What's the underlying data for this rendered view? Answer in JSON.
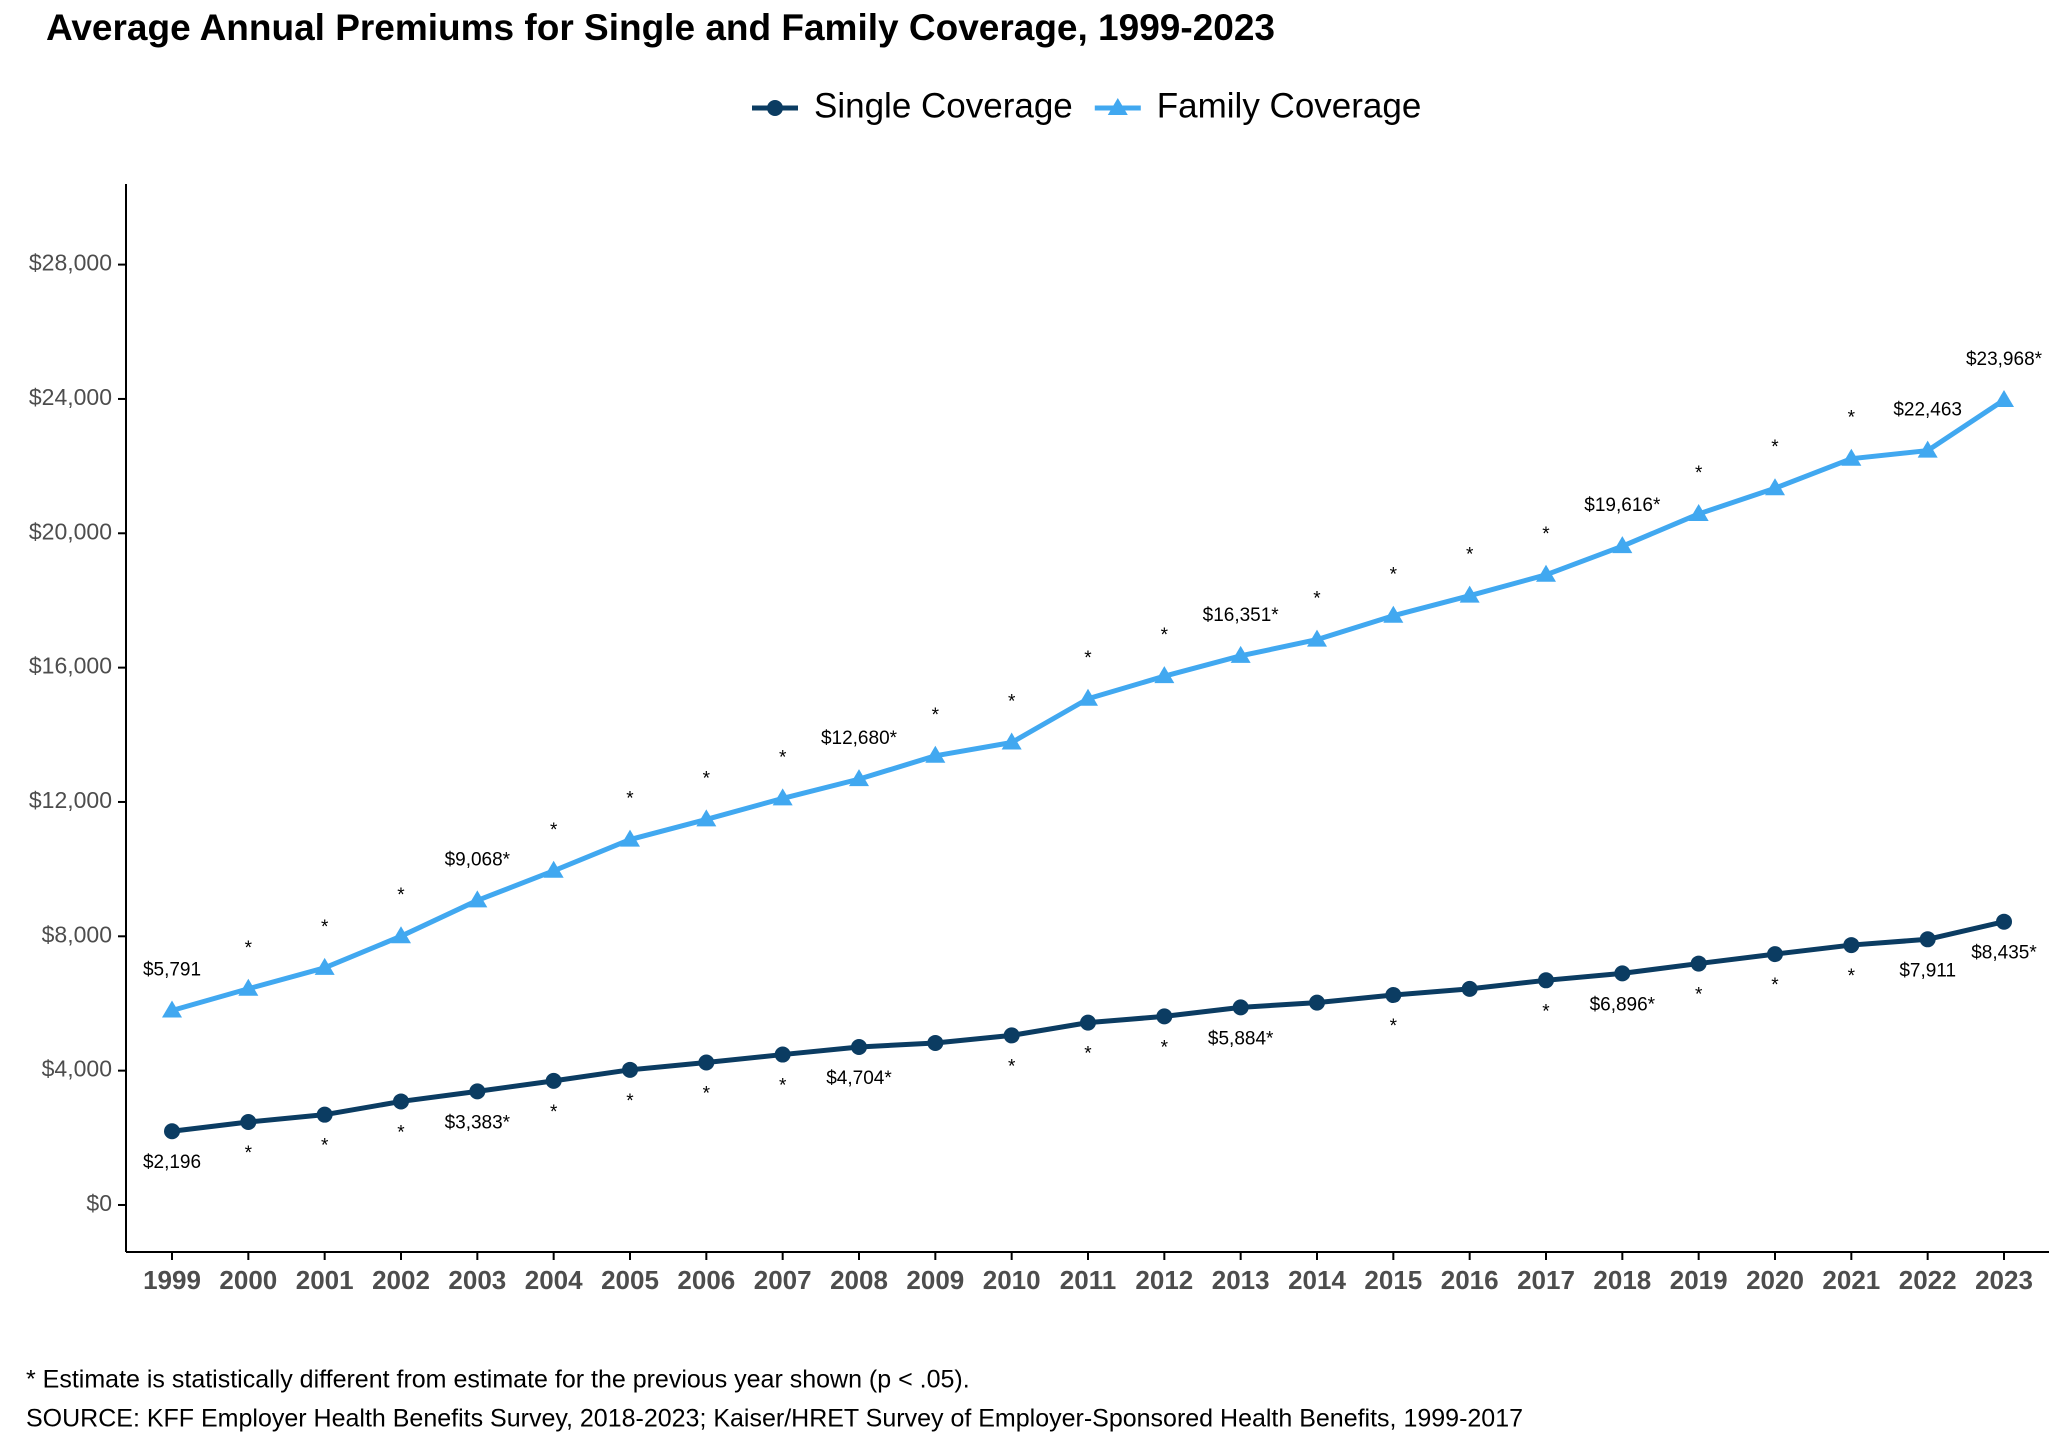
{
  "chart_data": {
    "type": "line",
    "title": "Average Annual Premiums for Single and Family Coverage, 1999-2023",
    "categories": [
      "1999",
      "2000",
      "2001",
      "2002",
      "2003",
      "2004",
      "2005",
      "2006",
      "2007",
      "2008",
      "2009",
      "2010",
      "2011",
      "2012",
      "2013",
      "2014",
      "2015",
      "2016",
      "2017",
      "2018",
      "2019",
      "2020",
      "2021",
      "2022",
      "2023"
    ],
    "series": [
      {
        "name": "Single Coverage",
        "color": "#0b3c62",
        "marker": "circle",
        "label_side": "below",
        "values": [
          2196,
          2471,
          2689,
          3083,
          3383,
          3695,
          4024,
          4242,
          4479,
          4704,
          4824,
          5049,
          5429,
          5615,
          5884,
          6025,
          6251,
          6435,
          6690,
          6896,
          7188,
          7470,
          7739,
          7911,
          8435
        ],
        "value_labels": [
          "$2,196",
          "*",
          "*",
          "*",
          "$3,383*",
          "*",
          "*",
          "*",
          "*",
          "$4,704*",
          null,
          "*",
          "*",
          "*",
          "$5,884*",
          null,
          "*",
          null,
          "*",
          "$6,896*",
          "*",
          "*",
          "*",
          "$7,911",
          "$8,435*"
        ]
      },
      {
        "name": "Family Coverage",
        "color": "#41a8f0",
        "marker": "triangle",
        "label_side": "above",
        "values": [
          5791,
          6438,
          7061,
          8003,
          9068,
          9950,
          10880,
          11480,
          12106,
          12680,
          13375,
          13770,
          15073,
          15745,
          16351,
          16834,
          17545,
          18142,
          18764,
          19616,
          20576,
          21342,
          22221,
          22463,
          23968
        ],
        "value_labels": [
          "$5,791",
          "*",
          "*",
          "*",
          "$9,068*",
          "*",
          "*",
          "*",
          "*",
          "$12,680*",
          "*",
          "*",
          "*",
          "*",
          "$16,351*",
          "*",
          "*",
          "*",
          "*",
          "$19,616*",
          "*",
          "*",
          "*",
          "$22,463",
          "$23,968*"
        ]
      }
    ],
    "ylim": [
      -1400,
      30400
    ],
    "yticks": [
      {
        "value": 0,
        "label": "$0"
      },
      {
        "value": 4000,
        "label": "$4,000"
      },
      {
        "value": 8000,
        "label": "$8,000"
      },
      {
        "value": 12000,
        "label": "$12,000"
      },
      {
        "value": 16000,
        "label": "$16,000"
      },
      {
        "value": 20000,
        "label": "$20,000"
      },
      {
        "value": 24000,
        "label": "$24,000"
      },
      {
        "value": 28000,
        "label": "$28,000"
      }
    ],
    "grid": false,
    "legend": "top",
    "footnote": "* Estimate is statistically different from estimate for the previous year shown (p < .05).",
    "source": "SOURCE: KFF Employer Health Benefits Survey, 2018-2023; Kaiser/HRET Survey of Employer-Sponsored Health Benefits, 1999-2017"
  }
}
